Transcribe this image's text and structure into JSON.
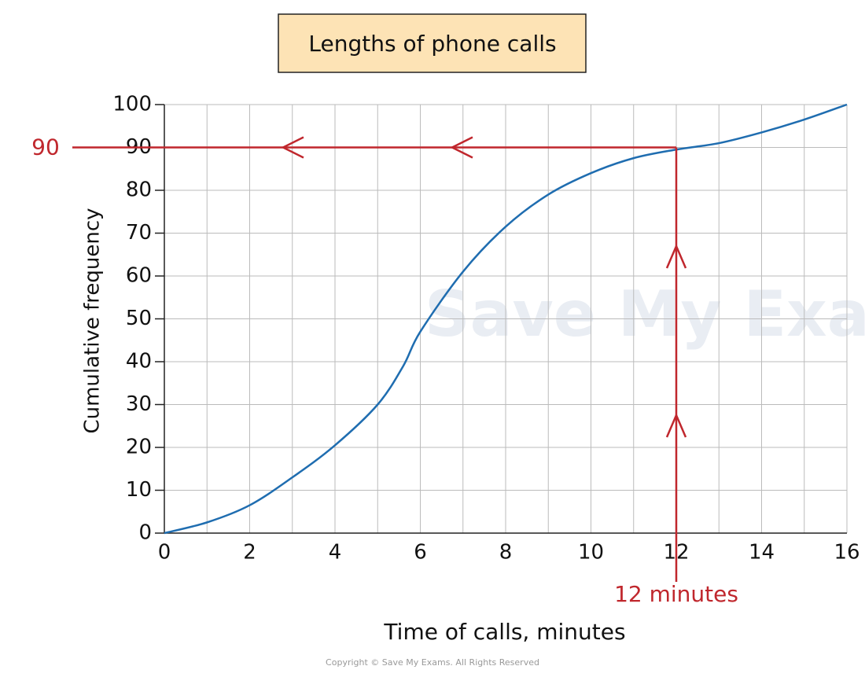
{
  "chart_data": {
    "type": "line",
    "title": "Lengths of phone calls",
    "xlabel": "Time of calls, minutes",
    "ylabel": "Cumulative frequency",
    "x": [
      0,
      1,
      2,
      3,
      4,
      5,
      5.6,
      6,
      7,
      8,
      9,
      10,
      11,
      12,
      13,
      14,
      15,
      16
    ],
    "values": [
      0,
      2.5,
      6.5,
      13,
      20.5,
      30,
      39,
      47,
      61,
      71.5,
      79,
      84,
      87.5,
      89.5,
      91,
      93.5,
      96.5,
      100
    ],
    "color": "#1f6db0",
    "xlim": [
      0,
      16
    ],
    "xticks": [
      0,
      2,
      4,
      6,
      8,
      10,
      12,
      14,
      16
    ],
    "ylim": [
      0,
      100
    ],
    "yticks": [
      0,
      10,
      20,
      30,
      40,
      50,
      60,
      70,
      80,
      90,
      100
    ],
    "grid": true,
    "reading": {
      "x": 12,
      "y": 90,
      "color": "#c0272d",
      "x_label": "12 minutes",
      "y_label": "90"
    },
    "watermark": "Save My Exams",
    "copyright": "Copyright © Save My Exams. All Rights Reserved"
  }
}
